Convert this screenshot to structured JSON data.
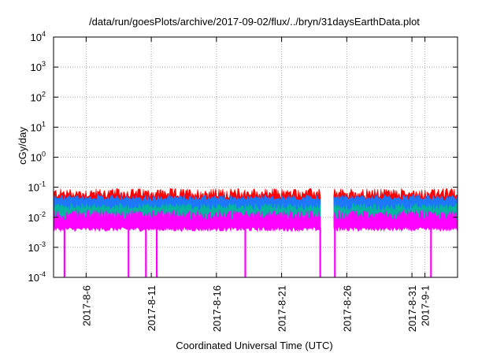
{
  "chart_data": {
    "type": "area",
    "title": "/data/run/goesPlots/archive/2017-09-02/flux/../bryn/31daysEarthData.plot",
    "xlabel": "Coordinated Universal Time (UTC)",
    "ylabel": "cGy/day",
    "yscale": "log",
    "ylim": [
      0.0001,
      10000
    ],
    "y_ticks": [
      {
        "base": "10",
        "exp": "-4",
        "value": 0.0001
      },
      {
        "base": "10",
        "exp": "-3",
        "value": 0.001
      },
      {
        "base": "10",
        "exp": "-2",
        "value": 0.01
      },
      {
        "base": "10",
        "exp": "-1",
        "value": 0.1
      },
      {
        "base": "10",
        "exp": "0",
        "value": 1
      },
      {
        "base": "10",
        "exp": "1",
        "value": 10
      },
      {
        "base": "10",
        "exp": "2",
        "value": 100
      },
      {
        "base": "10",
        "exp": "3",
        "value": 1000
      },
      {
        "base": "10",
        "exp": "4",
        "value": 10000
      }
    ],
    "xlim": [
      "2017-08-03T12:00",
      "2017-09-03T12:00"
    ],
    "x_ticks": [
      {
        "label": "2017-8-6",
        "date": "2017-08-06"
      },
      {
        "label": "2017-8-11",
        "date": "2017-08-11"
      },
      {
        "label": "2017-8-16",
        "date": "2017-08-16"
      },
      {
        "label": "2017-8-21",
        "date": "2017-08-21"
      },
      {
        "label": "2017-8-26",
        "date": "2017-08-26"
      },
      {
        "label": "2017-8-31",
        "date": "2017-08-31"
      },
      {
        "label": "2017-9-1",
        "date": "2017-09-01"
      }
    ],
    "grid": true,
    "legend": "none",
    "data_gap": [
      "2017-08-24T00:00",
      "2017-08-25T00:00"
    ],
    "series": [
      {
        "color": "#ff0000",
        "typical": 0.06,
        "peak": 0.09
      },
      {
        "color": "#1e78ff",
        "typical": 0.045
      },
      {
        "color": "#00b4a0",
        "typical": 0.022
      },
      {
        "color": "#ff00ff",
        "typical": 0.012,
        "floor": 0.004
      }
    ],
    "dropouts": [
      "2017-08-04T08:00",
      "2017-08-09T06:00",
      "2017-08-10T14:00",
      "2017-08-11T10:00",
      "2017-08-18T05:00",
      "2017-08-23T23:00",
      "2017-08-25T02:00",
      "2017-09-01T11:00"
    ]
  }
}
